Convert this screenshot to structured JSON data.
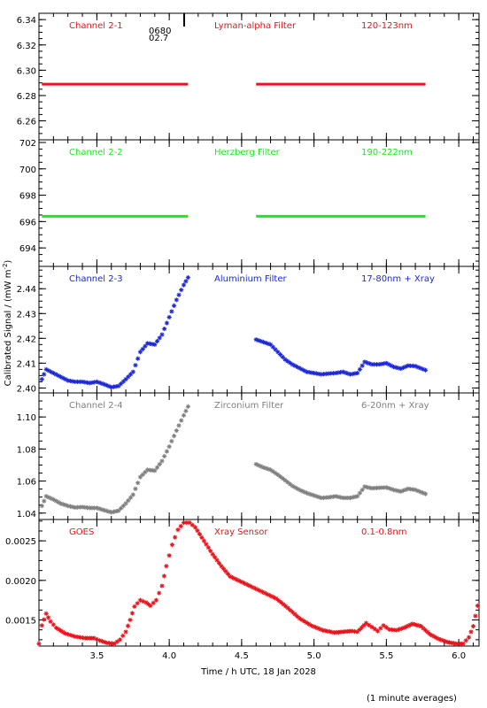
{
  "figure": {
    "ylabel": "Calibrated Signal / (mW m",
    "ylabel_sup": "-2",
    "ylabel_end": ")",
    "xlabel": "Time / h UTC, 18 Jan 2028",
    "footnote": "(1 minute averages)",
    "x_range": [
      3.1,
      6.14
    ],
    "x_ticks": [
      3.5,
      4.0,
      4.5,
      5.0,
      5.5,
      6.0
    ],
    "x_tick_labels": [
      "3.5",
      "4.0",
      "4.5",
      "5.0",
      "5.5",
      "6.0"
    ],
    "overlap_text_1": "0680",
    "overlap_text_2": "02.7"
  },
  "chart_data": [
    {
      "type": "scatter",
      "channel": "Channel 2-1",
      "filter": "Lyman-alpha Filter",
      "band": "120-123nm",
      "color": "#e8141c",
      "ylim": [
        6.245,
        6.345
      ],
      "yticks": [
        6.26,
        6.28,
        6.3,
        6.32,
        6.34
      ],
      "ytick_labels": [
        "6.26",
        "6.28",
        "6.30",
        "6.32",
        "6.34"
      ],
      "segments": [
        {
          "x": [
            3.12,
            4.13
          ],
          "y": [
            6.289,
            6.289
          ]
        },
        {
          "x": [
            4.6,
            5.77
          ],
          "y": [
            6.289,
            6.289
          ]
        }
      ]
    },
    {
      "type": "scatter",
      "channel": "Channel 2-2",
      "filter": "Herzberg Filter",
      "band": "190-222nm",
      "color": "#1ee81e",
      "ylim": [
        692.6,
        702.2
      ],
      "yticks": [
        694,
        696,
        698,
        700,
        702
      ],
      "ytick_labels": [
        "694",
        "696",
        "698",
        "700",
        "702"
      ],
      "segments": [
        {
          "x": [
            3.12,
            4.13
          ],
          "y": [
            696.4,
            696.4
          ]
        },
        {
          "x": [
            4.6,
            5.77
          ],
          "y": [
            696.4,
            696.4
          ]
        }
      ]
    },
    {
      "type": "scatter",
      "channel": "Channel 2-3",
      "filter": "Aluminium Filter",
      "band": "17-80nm + Xray",
      "color": "#1c28d8",
      "ylim": [
        2.398,
        2.449
      ],
      "yticks": [
        2.4,
        2.41,
        2.42,
        2.43,
        2.44
      ],
      "ytick_labels": [
        "2.40",
        "2.41",
        "2.42",
        "2.43",
        "2.44"
      ],
      "points": [
        [
          3.12,
          2.4035
        ],
        [
          3.15,
          2.4075
        ],
        [
          3.2,
          2.406
        ],
        [
          3.25,
          2.4045
        ],
        [
          3.3,
          2.403
        ],
        [
          3.35,
          2.4025
        ],
        [
          3.4,
          2.4025
        ],
        [
          3.45,
          2.402
        ],
        [
          3.5,
          2.4025
        ],
        [
          3.55,
          2.4015
        ],
        [
          3.6,
          2.4003
        ],
        [
          3.65,
          2.4008
        ],
        [
          3.7,
          2.4035
        ],
        [
          3.75,
          2.4065
        ],
        [
          3.8,
          2.4145
        ],
        [
          3.85,
          2.418
        ],
        [
          3.9,
          2.4175
        ],
        [
          3.95,
          2.4215
        ],
        [
          4.0,
          2.4285
        ],
        [
          4.05,
          2.4355
        ],
        [
          4.1,
          2.4415
        ],
        [
          4.13,
          2.4445
        ],
        [
          4.6,
          2.4195
        ],
        [
          4.65,
          2.4185
        ],
        [
          4.7,
          2.4175
        ],
        [
          4.75,
          2.4145
        ],
        [
          4.8,
          2.4115
        ],
        [
          4.85,
          2.4095
        ],
        [
          4.9,
          2.408
        ],
        [
          4.95,
          2.4065
        ],
        [
          5.0,
          2.406
        ],
        [
          5.05,
          2.4055
        ],
        [
          5.1,
          2.4058
        ],
        [
          5.15,
          2.406
        ],
        [
          5.2,
          2.4065
        ],
        [
          5.25,
          2.4055
        ],
        [
          5.3,
          2.406
        ],
        [
          5.35,
          2.4105
        ],
        [
          5.4,
          2.4095
        ],
        [
          5.45,
          2.4095
        ],
        [
          5.5,
          2.41
        ],
        [
          5.55,
          2.4085
        ],
        [
          5.6,
          2.4078
        ],
        [
          5.65,
          2.409
        ],
        [
          5.7,
          2.4088
        ],
        [
          5.77,
          2.4072
        ]
      ]
    },
    {
      "type": "scatter",
      "channel": "Channel 2-4",
      "filter": "Zirconium Filter",
      "band": "6-20nm + Xray",
      "color": "#808080",
      "ylim": [
        1.036,
        1.115
      ],
      "yticks": [
        1.04,
        1.06,
        1.08,
        1.1
      ],
      "ytick_labels": [
        "1.04",
        "1.06",
        "1.08",
        "1.10"
      ],
      "points": [
        [
          3.12,
          1.0445
        ],
        [
          3.15,
          1.0505
        ],
        [
          3.2,
          1.0485
        ],
        [
          3.25,
          1.046
        ],
        [
          3.3,
          1.0445
        ],
        [
          3.35,
          1.0435
        ],
        [
          3.4,
          1.0438
        ],
        [
          3.45,
          1.0432
        ],
        [
          3.5,
          1.0432
        ],
        [
          3.55,
          1.0418
        ],
        [
          3.6,
          1.0405
        ],
        [
          3.65,
          1.0415
        ],
        [
          3.7,
          1.046
        ],
        [
          3.75,
          1.0515
        ],
        [
          3.8,
          1.0625
        ],
        [
          3.85,
          1.067
        ],
        [
          3.9,
          1.0665
        ],
        [
          3.95,
          1.0725
        ],
        [
          4.0,
          1.0815
        ],
        [
          4.05,
          1.0915
        ],
        [
          4.1,
          1.101
        ],
        [
          4.13,
          1.1065
        ],
        [
          4.6,
          1.0705
        ],
        [
          4.65,
          1.0685
        ],
        [
          4.7,
          1.067
        ],
        [
          4.75,
          1.064
        ],
        [
          4.8,
          1.0605
        ],
        [
          4.85,
          1.057
        ],
        [
          4.9,
          1.0545
        ],
        [
          4.95,
          1.0525
        ],
        [
          5.0,
          1.051
        ],
        [
          5.05,
          1.0495
        ],
        [
          5.1,
          1.0498
        ],
        [
          5.15,
          1.0505
        ],
        [
          5.2,
          1.0495
        ],
        [
          5.25,
          1.0495
        ],
        [
          5.3,
          1.0505
        ],
        [
          5.35,
          1.0565
        ],
        [
          5.4,
          1.0555
        ],
        [
          5.45,
          1.0558
        ],
        [
          5.5,
          1.056
        ],
        [
          5.55,
          1.0545
        ],
        [
          5.6,
          1.0535
        ],
        [
          5.65,
          1.0552
        ],
        [
          5.7,
          1.0545
        ],
        [
          5.77,
          1.052
        ]
      ]
    },
    {
      "type": "scatter",
      "channel": "GOES",
      "filter": "Xray Sensor",
      "band": "0.1-0.8nm",
      "color": "#e8141c",
      "ylim": [
        0.00117,
        0.00277
      ],
      "yticks": [
        0.0015,
        0.002,
        0.0025
      ],
      "ytick_labels": [
        "0.0015",
        "0.0020",
        "0.0025"
      ],
      "points": [
        [
          3.1,
          0.0012
        ],
        [
          3.12,
          0.00143
        ],
        [
          3.15,
          0.00158
        ],
        [
          3.18,
          0.00148
        ],
        [
          3.22,
          0.0014
        ],
        [
          3.28,
          0.00133
        ],
        [
          3.35,
          0.00129
        ],
        [
          3.42,
          0.00127
        ],
        [
          3.48,
          0.00127
        ],
        [
          3.52,
          0.00124
        ],
        [
          3.57,
          0.00121
        ],
        [
          3.62,
          0.0012
        ],
        [
          3.66,
          0.00125
        ],
        [
          3.7,
          0.00135
        ],
        [
          3.73,
          0.0015
        ],
        [
          3.76,
          0.00167
        ],
        [
          3.8,
          0.00175
        ],
        [
          3.84,
          0.00172
        ],
        [
          3.87,
          0.00168
        ],
        [
          3.91,
          0.00175
        ],
        [
          3.95,
          0.00193
        ],
        [
          3.98,
          0.00218
        ],
        [
          4.02,
          0.00245
        ],
        [
          4.06,
          0.00264
        ],
        [
          4.1,
          0.00273
        ],
        [
          4.14,
          0.00273
        ],
        [
          4.18,
          0.00267
        ],
        [
          4.24,
          0.0025
        ],
        [
          4.3,
          0.00233
        ],
        [
          4.36,
          0.00218
        ],
        [
          4.42,
          0.00205
        ],
        [
          4.5,
          0.00198
        ],
        [
          4.58,
          0.00191
        ],
        [
          4.66,
          0.00184
        ],
        [
          4.74,
          0.00177
        ],
        [
          4.82,
          0.00165
        ],
        [
          4.9,
          0.00152
        ],
        [
          4.98,
          0.00143
        ],
        [
          5.06,
          0.00137
        ],
        [
          5.14,
          0.00134
        ],
        [
          5.2,
          0.00135
        ],
        [
          5.26,
          0.00136
        ],
        [
          5.3,
          0.00135
        ],
        [
          5.36,
          0.00146
        ],
        [
          5.4,
          0.00141
        ],
        [
          5.44,
          0.00136
        ],
        [
          5.48,
          0.00143
        ],
        [
          5.52,
          0.00138
        ],
        [
          5.57,
          0.00137
        ],
        [
          5.62,
          0.0014
        ],
        [
          5.68,
          0.00145
        ],
        [
          5.74,
          0.00142
        ],
        [
          5.8,
          0.00132
        ],
        [
          5.86,
          0.00126
        ],
        [
          5.92,
          0.00122
        ],
        [
          5.98,
          0.0012
        ],
        [
          6.03,
          0.0012
        ],
        [
          6.07,
          0.00128
        ],
        [
          6.1,
          0.00142
        ],
        [
          6.13,
          0.00168
        ]
      ]
    }
  ]
}
